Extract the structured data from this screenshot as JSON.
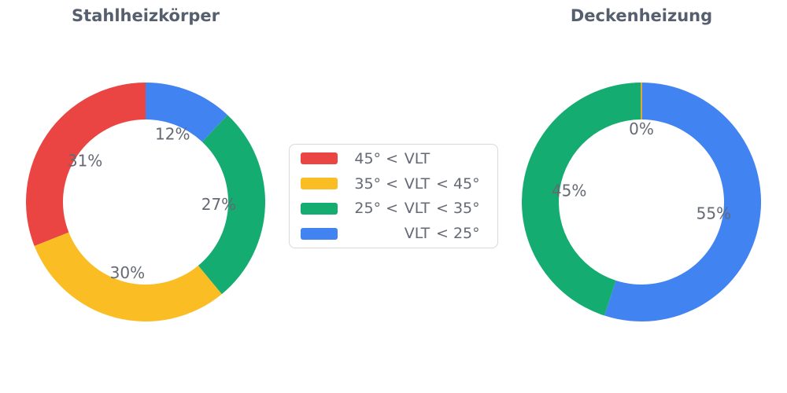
{
  "figure": {
    "background": "#ffffff",
    "title_color": "#565F6E",
    "label_color": "#646973",
    "legend_border_color": "#d9d9d9"
  },
  "palette": {
    "red": "#EA4542",
    "yellow": "#FABD23",
    "green": "#15AC72",
    "blue": "#4183F0"
  },
  "legend": {
    "items": [
      {
        "color": "red",
        "label": "45° < VLT",
        "left": "45° <",
        "mid": "VLT",
        "right": ""
      },
      {
        "color": "yellow",
        "label": "35° < VLT < 45°",
        "left": "35° <",
        "mid": "VLT",
        "right": "< 45°"
      },
      {
        "color": "green",
        "label": "25° < VLT < 35°",
        "left": "25° <",
        "mid": "VLT",
        "right": "< 35°"
      },
      {
        "color": "blue",
        "label": "VLT < 25°",
        "left": "",
        "mid": "VLT",
        "right": "< 25°"
      }
    ]
  },
  "chart_data": [
    {
      "type": "pie",
      "title": "Stahlheizkörper",
      "hole": 0.69,
      "direction": "counterclockwise",
      "start_angle_deg": 0,
      "legend_position": "center-between-charts",
      "labels": [
        "45° < VLT",
        "35° < VLT < 45°",
        "25° < VLT < 35°",
        "VLT < 25°"
      ],
      "colors": [
        "red",
        "yellow",
        "green",
        "blue"
      ],
      "values": [
        31,
        30,
        27,
        12
      ],
      "value_suffix": "%",
      "value_labels": [
        "31%",
        "30%",
        "27%",
        "12%"
      ]
    },
    {
      "type": "pie",
      "title": "Deckenheizung",
      "hole": 0.69,
      "direction": "counterclockwise",
      "start_angle_deg": 0,
      "legend_position": "center-between-charts",
      "labels": [
        "45° < VLT",
        "35° < VLT < 45°",
        "25° < VLT < 35°",
        "VLT < 25°"
      ],
      "colors": [
        "red",
        "yellow",
        "green",
        "blue"
      ],
      "values": [
        0,
        0,
        45,
        55
      ],
      "value_suffix": "%",
      "value_labels": [
        "0%",
        "0%",
        "45%",
        "55%"
      ]
    }
  ]
}
